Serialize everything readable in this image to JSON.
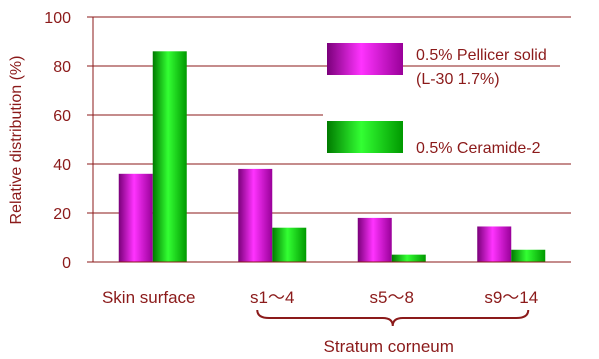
{
  "chart_data": {
    "type": "bar",
    "categories": [
      "Skin surface",
      "s1〜4",
      "s5〜8",
      "s9〜14"
    ],
    "series": [
      {
        "name": "0.5% Pellicer solid (L-30 1.7%)",
        "name_lines": [
          "0.5% Pellicer solid",
          "(L-30 1.7%)"
        ],
        "values": [
          36,
          38,
          18,
          14.5
        ],
        "color": "#cc00cc"
      },
      {
        "name": "0.5% Ceramide-2",
        "name_lines": [
          "0.5% Ceramide-2"
        ],
        "values": [
          86,
          14,
          3,
          5
        ],
        "color": "#00cc00"
      }
    ],
    "ylabel": "Relative distribution (%)",
    "ylim": [
      0,
      100
    ],
    "yticks": [
      0,
      20,
      40,
      60,
      80,
      100
    ],
    "grid": true,
    "legend": "top-right",
    "group_label": "Stratum corneum",
    "axis_color": "#8b1a1a"
  }
}
